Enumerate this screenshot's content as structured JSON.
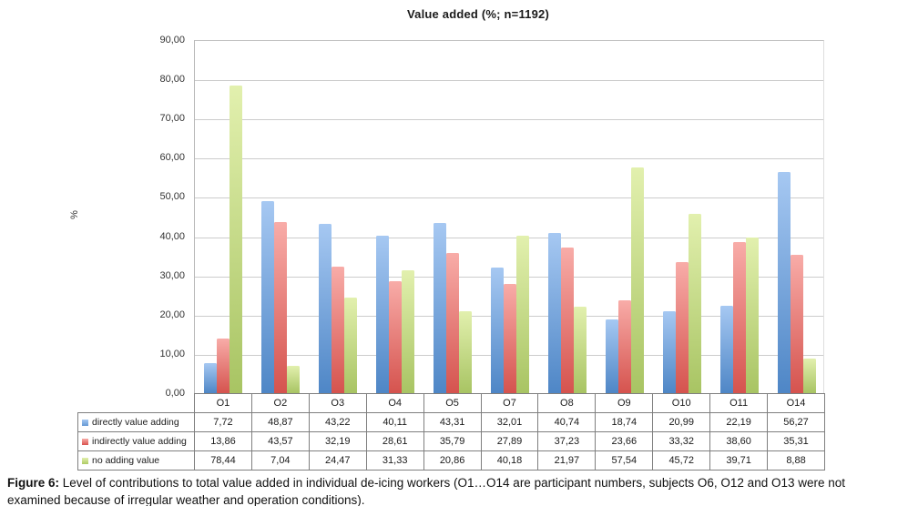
{
  "chart": {
    "title": "Value added (%; n=1192)",
    "y_axis_title": "%"
  },
  "chart_data": {
    "type": "bar",
    "title": "Value added (%; n=1192)",
    "xlabel": "",
    "ylabel": "%",
    "ylim": [
      0,
      90
    ],
    "ytick_step": 10,
    "ytick_labels": [
      "90,00",
      "80,00",
      "70,00",
      "60,00",
      "50,00",
      "40,00",
      "30,00",
      "20,00",
      "10,00",
      "0,00"
    ],
    "grid": true,
    "legend_position": "data-table-left",
    "categories": [
      "O1",
      "O2",
      "O3",
      "O4",
      "O5",
      "O7",
      "O8",
      "O9",
      "O10",
      "O11",
      "O14"
    ],
    "series": [
      {
        "name": "directly value adding",
        "values": [
          7.72,
          48.87,
          43.22,
          40.11,
          43.31,
          32.01,
          40.74,
          18.74,
          20.99,
          22.19,
          56.27
        ],
        "labels": [
          "7,72",
          "48,87",
          "43,22",
          "40,11",
          "43,31",
          "32,01",
          "40,74",
          "18,74",
          "20,99",
          "22,19",
          "56,27"
        ],
        "color_top": "#A6C8F2",
        "color_bottom": "#4E86C6",
        "swatch_color": "#6699D4"
      },
      {
        "name": "indirectly value adding",
        "values": [
          13.86,
          43.57,
          32.19,
          28.61,
          35.79,
          27.89,
          37.23,
          23.66,
          33.32,
          38.6,
          35.31
        ],
        "labels": [
          "13,86",
          "43,57",
          "32,19",
          "28,61",
          "35,79",
          "27,89",
          "37,23",
          "23,66",
          "33,32",
          "38,60",
          "35,31"
        ],
        "color_top": "#F8ACA8",
        "color_bottom": "#D5534E",
        "swatch_color": "#D9534F"
      },
      {
        "name": "no adding value",
        "values": [
          78.44,
          7.04,
          24.47,
          31.33,
          20.86,
          40.18,
          21.97,
          57.54,
          45.72,
          39.71,
          8.88
        ],
        "labels": [
          "78,44",
          "7,04",
          "24,47",
          "31,33",
          "20,86",
          "40,18",
          "21,97",
          "57,54",
          "45,72",
          "39,71",
          "8,88"
        ],
        "color_top": "#E2F0AE",
        "color_bottom": "#A8C463",
        "swatch_color": "#AECB64"
      }
    ]
  },
  "caption": {
    "label": "Figure 6:",
    "text": "Level of contributions to total value added in individual de-icing workers (O1…O14 are participant numbers, subjects O6, O12 and O13 were not examined because of irregular weather and operation conditions)."
  }
}
